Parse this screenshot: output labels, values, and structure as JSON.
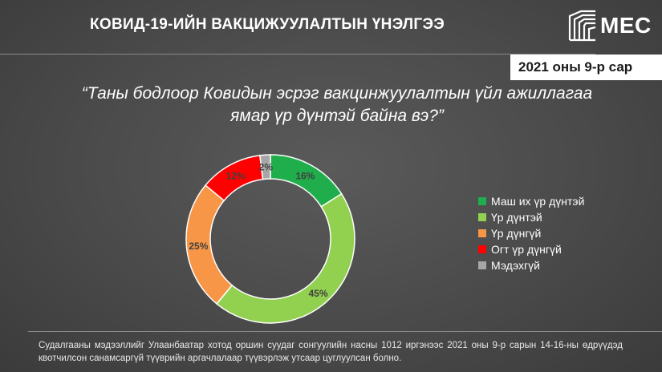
{
  "header": {
    "title": "КОВИД-19-ИЙН ВАКЦИЖУУЛАЛТЫН ҮНЭЛГЭЭ",
    "logo": {
      "icon": "mec-logo-icon",
      "text": "MEC"
    },
    "date": "2021 оны 9-р сар"
  },
  "question": "“Таны бодлоор Ковидын эсрэг вакцинжуулалтын үйл ажиллагаа ямар үр дүнтэй байна вэ?”",
  "chart_data": {
    "type": "pie",
    "donut": true,
    "categories": [
      "Маш их үр дүнтэй",
      "Үр дүнтэй",
      "Үр дүнгүй",
      "Огт үр дүнгүй",
      "Мэдэхгүй"
    ],
    "values": [
      16,
      45,
      25,
      12,
      2
    ],
    "labels": [
      "16%",
      "45%",
      "25%",
      "12%",
      "2%"
    ],
    "colors": [
      "#1fae4b",
      "#92d050",
      "#f79646",
      "#ff0000",
      "#a6a6a6"
    ],
    "start": "top, clockwise",
    "legend": "right"
  },
  "footnote": "Судалгааны мэдээллийг Улаанбаатар хотод оршин суудаг сонгуулийн насны 1012 иргэнээс 2021 оны 9-р сарын 14-16-ны өдрүүдэд квотчилсон санамсаргүй түүврийн аргачлалаар түүвэрлэж утсаар цуглуулсан болно."
}
